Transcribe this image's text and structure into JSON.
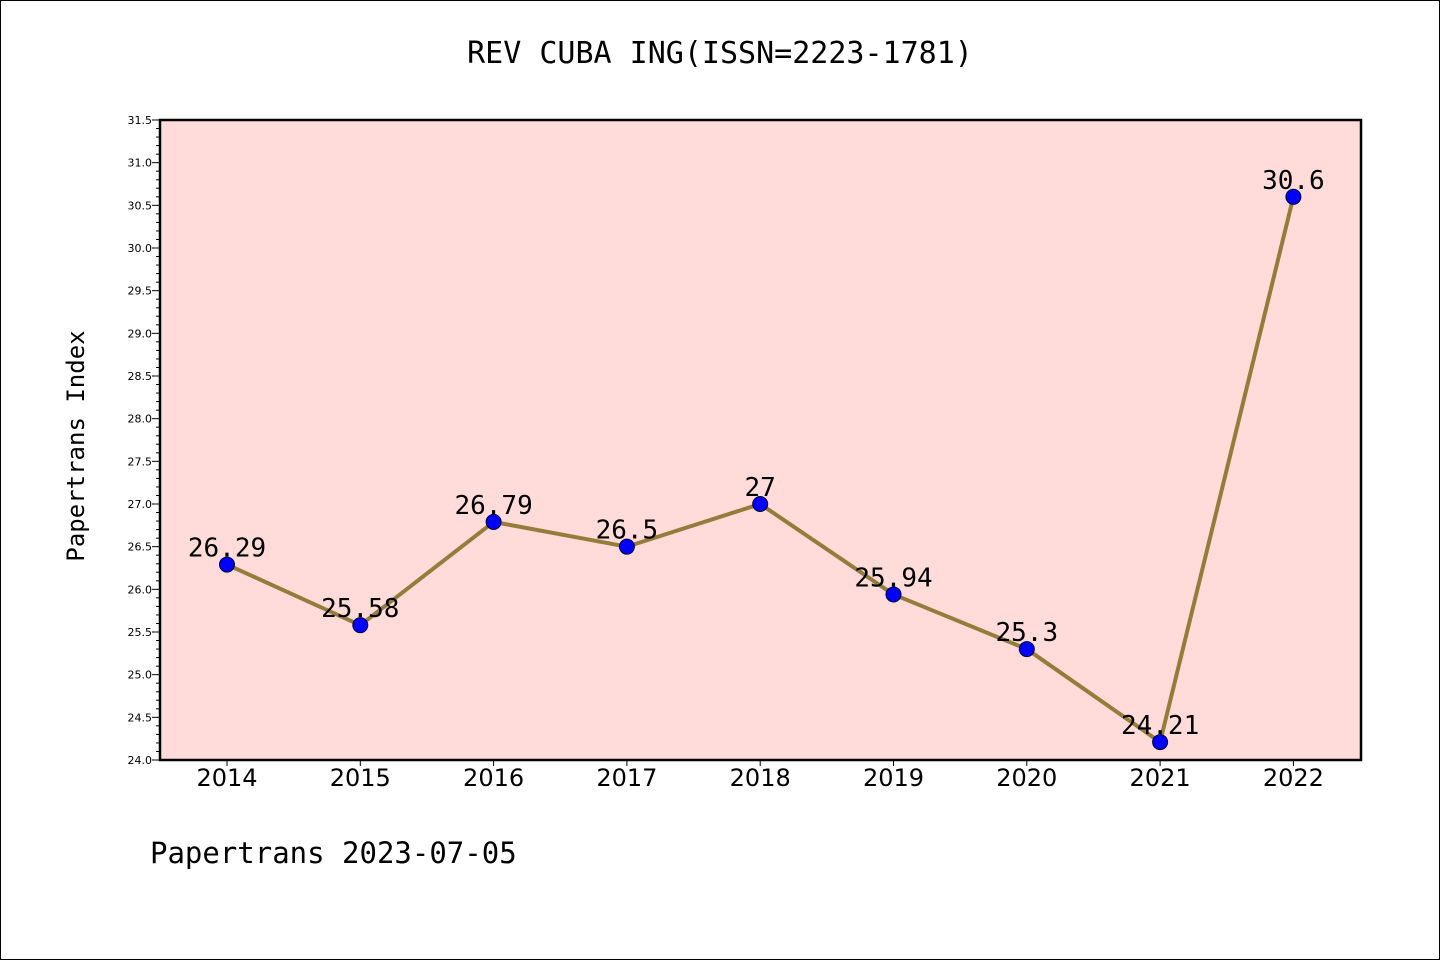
{
  "title": "REV CUBA ING(ISSN=2223-1781)",
  "ylabel": "Papertrans Index",
  "footer": "Papertrans 2023-07-05",
  "colors": {
    "plot_background": "#ffdcd9",
    "line": "#957c3a",
    "marker": "#0000ff"
  },
  "chart_data": {
    "type": "line",
    "title": "REV CUBA ING(ISSN=2223-1781)",
    "xlabel": "",
    "ylabel": "Papertrans Index",
    "categories": [
      "2014",
      "2015",
      "2016",
      "2017",
      "2018",
      "2019",
      "2020",
      "2021",
      "2022"
    ],
    "values": [
      26.29,
      25.58,
      26.79,
      26.5,
      27,
      25.94,
      25.3,
      24.21,
      30.6
    ],
    "data_labels": [
      "26.29",
      "25.58",
      "26.79",
      "26.5",
      "27",
      "25.94",
      "25.3",
      "24.21",
      "30.6"
    ],
    "ylim": [
      24.0,
      31.5
    ],
    "yticks": [
      "24.0",
      "24.5",
      "25.0",
      "25.5",
      "26.0",
      "26.5",
      "27.0",
      "27.5",
      "28.0",
      "28.5",
      "29.0",
      "29.5",
      "30.0",
      "30.5",
      "31.0",
      "31.5"
    ],
    "grid": false,
    "legend": "none"
  }
}
